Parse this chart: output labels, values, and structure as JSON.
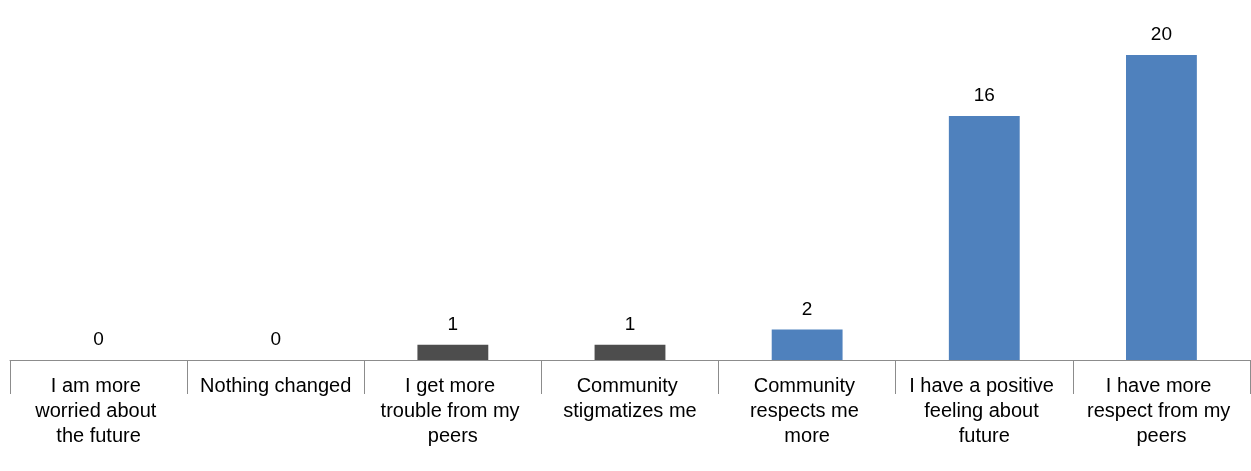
{
  "chart_data": {
    "type": "bar",
    "categories": [
      "I am more worried about the future",
      "Nothing changed",
      "I get more trouble from my peers",
      "Community stigmatizes me",
      "Community respects me more",
      "I have a positive feeling about future",
      "I have more respect from my peers"
    ],
    "values": [
      0,
      0,
      1,
      1,
      2,
      16,
      20
    ],
    "colors": [
      "#4d4d4d",
      "#4d4d4d",
      "#4d4d4d",
      "#4d4d4d",
      "#4f81bd",
      "#4f81bd",
      "#4f81bd"
    ],
    "data_labels": true
  }
}
